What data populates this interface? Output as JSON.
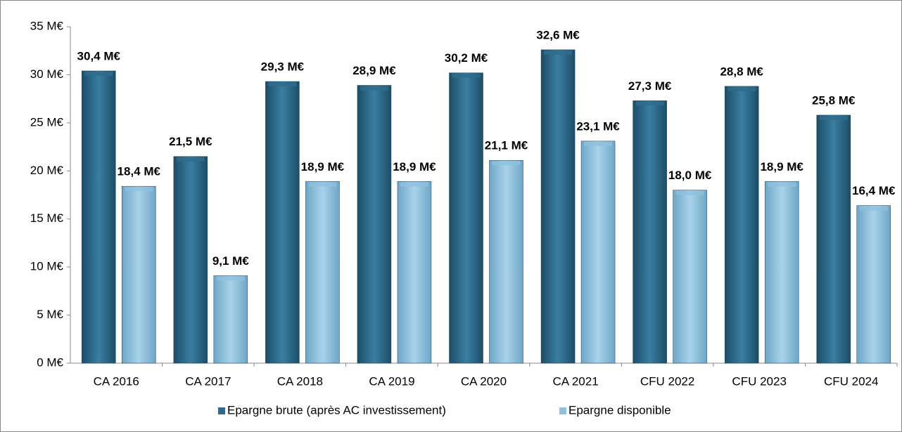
{
  "chart_data": {
    "type": "bar",
    "categories": [
      "CA 2016",
      "CA 2017",
      "CA 2018",
      "CA 2019",
      "CA 2020",
      "CA 2021",
      "CFU 2022",
      "CFU 2023",
      "CFU 2024"
    ],
    "series": [
      {
        "name": "Epargne brute (après AC investissement)",
        "color": "#2f6b8c",
        "values": [
          30.4,
          21.5,
          29.3,
          28.9,
          30.2,
          32.6,
          27.3,
          28.8,
          25.8
        ],
        "value_labels": [
          "30,4 M€",
          "21,5 M€",
          "29,3 M€",
          "28,9 M€",
          "30,2 M€",
          "32,6 M€",
          "27,3 M€",
          "28,8 M€",
          "25,8 M€"
        ]
      },
      {
        "name": "Epargne disponible",
        "color": "#8fc1de",
        "values": [
          18.4,
          9.1,
          18.9,
          18.9,
          21.1,
          23.1,
          18.0,
          18.9,
          16.4
        ],
        "value_labels": [
          "18,4 M€",
          "9,1 M€",
          "18,9 M€",
          "18,9 M€",
          "21,1 M€",
          "23,1 M€",
          "18,0 M€",
          "18,9 M€",
          "16,4 M€"
        ]
      }
    ],
    "ylim": [
      0,
      35
    ],
    "yticks": [
      {
        "value": 0,
        "label": "0 M€"
      },
      {
        "value": 5,
        "label": "5 M€"
      },
      {
        "value": 10,
        "label": "10 M€"
      },
      {
        "value": 15,
        "label": "15 M€"
      },
      {
        "value": 20,
        "label": "20 M€"
      },
      {
        "value": 25,
        "label": "25 M€"
      },
      {
        "value": 30,
        "label": "30 M€"
      },
      {
        "value": 35,
        "label": "35 M€"
      }
    ],
    "grid": false,
    "legend": "bottom"
  }
}
